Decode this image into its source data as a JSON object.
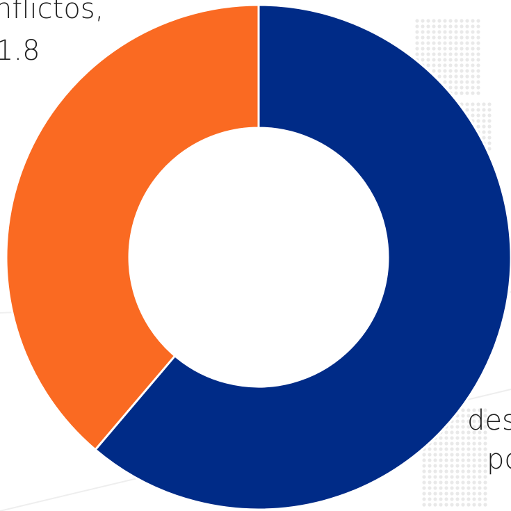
{
  "chart_data": {
    "type": "donut",
    "series": [
      {
        "name": "",
        "value": 61.2,
        "color": "#002b87"
      },
      {
        "name": "",
        "value": 38.8,
        "color": "#fa6a22"
      }
    ],
    "start": "top",
    "direction": "clockwise",
    "background": "world-map-dots",
    "labels": {
      "b1": "nflictos,",
      "b2": "1.8",
      "a1": "des",
      "a2": "po"
    }
  }
}
